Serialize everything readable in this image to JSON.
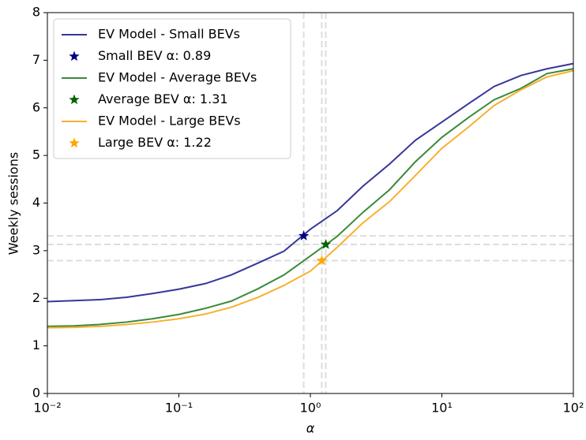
{
  "chart_data": {
    "type": "line",
    "x_label": "α",
    "y_label": "Weekly sessions",
    "x_scale": "log",
    "xlim": [
      0.01,
      100
    ],
    "xticks": [
      {
        "value": 0.01,
        "label": "10⁻²"
      },
      {
        "value": 0.1,
        "label": "10⁻¹"
      },
      {
        "value": 1,
        "label": "10⁰"
      },
      {
        "value": 10,
        "label": "10¹"
      },
      {
        "value": 100,
        "label": "10²"
      }
    ],
    "ylim": [
      0,
      8
    ],
    "yticks": [
      0,
      1,
      2,
      3,
      4,
      5,
      6,
      7,
      8
    ],
    "legend": "upper left",
    "x": [
      0.01,
      0.016,
      0.025,
      0.04,
      0.063,
      0.1,
      0.16,
      0.25,
      0.4,
      0.63,
      1,
      1.6,
      2.5,
      4,
      6.3,
      10,
      16,
      25,
      40,
      63,
      100
    ],
    "series": [
      {
        "name": "EV Model - Small BEVs",
        "color": "#36369a",
        "values": [
          1.93,
          1.95,
          1.97,
          2.02,
          2.1,
          2.19,
          2.31,
          2.49,
          2.74,
          2.99,
          3.45,
          3.84,
          4.35,
          4.82,
          5.32,
          5.7,
          6.09,
          6.45,
          6.68,
          6.82,
          6.93
        ]
      },
      {
        "name": "EV Model - Average BEVs",
        "color": "#3a8a3a",
        "values": [
          1.41,
          1.42,
          1.45,
          1.5,
          1.57,
          1.66,
          1.79,
          1.94,
          2.2,
          2.49,
          2.89,
          3.3,
          3.8,
          4.28,
          4.87,
          5.38,
          5.8,
          6.17,
          6.41,
          6.72,
          6.82
        ]
      },
      {
        "name": "EV Model - Large BEVs",
        "color": "#f7b030",
        "values": [
          1.38,
          1.39,
          1.41,
          1.45,
          1.5,
          1.57,
          1.67,
          1.81,
          2.02,
          2.27,
          2.57,
          3.07,
          3.58,
          4.03,
          4.58,
          5.15,
          5.6,
          6.05,
          6.38,
          6.65,
          6.78
        ]
      }
    ],
    "markers": [
      {
        "name": "Small BEV α: 0.89",
        "color": "#000080",
        "x": 0.89,
        "y": 3.31
      },
      {
        "name": "Average BEV α: 1.31",
        "color": "#006400",
        "x": 1.31,
        "y": 3.13
      },
      {
        "name": "Large BEV α: 1.22",
        "color": "#ffa500",
        "x": 1.22,
        "y": 2.79
      }
    ]
  }
}
